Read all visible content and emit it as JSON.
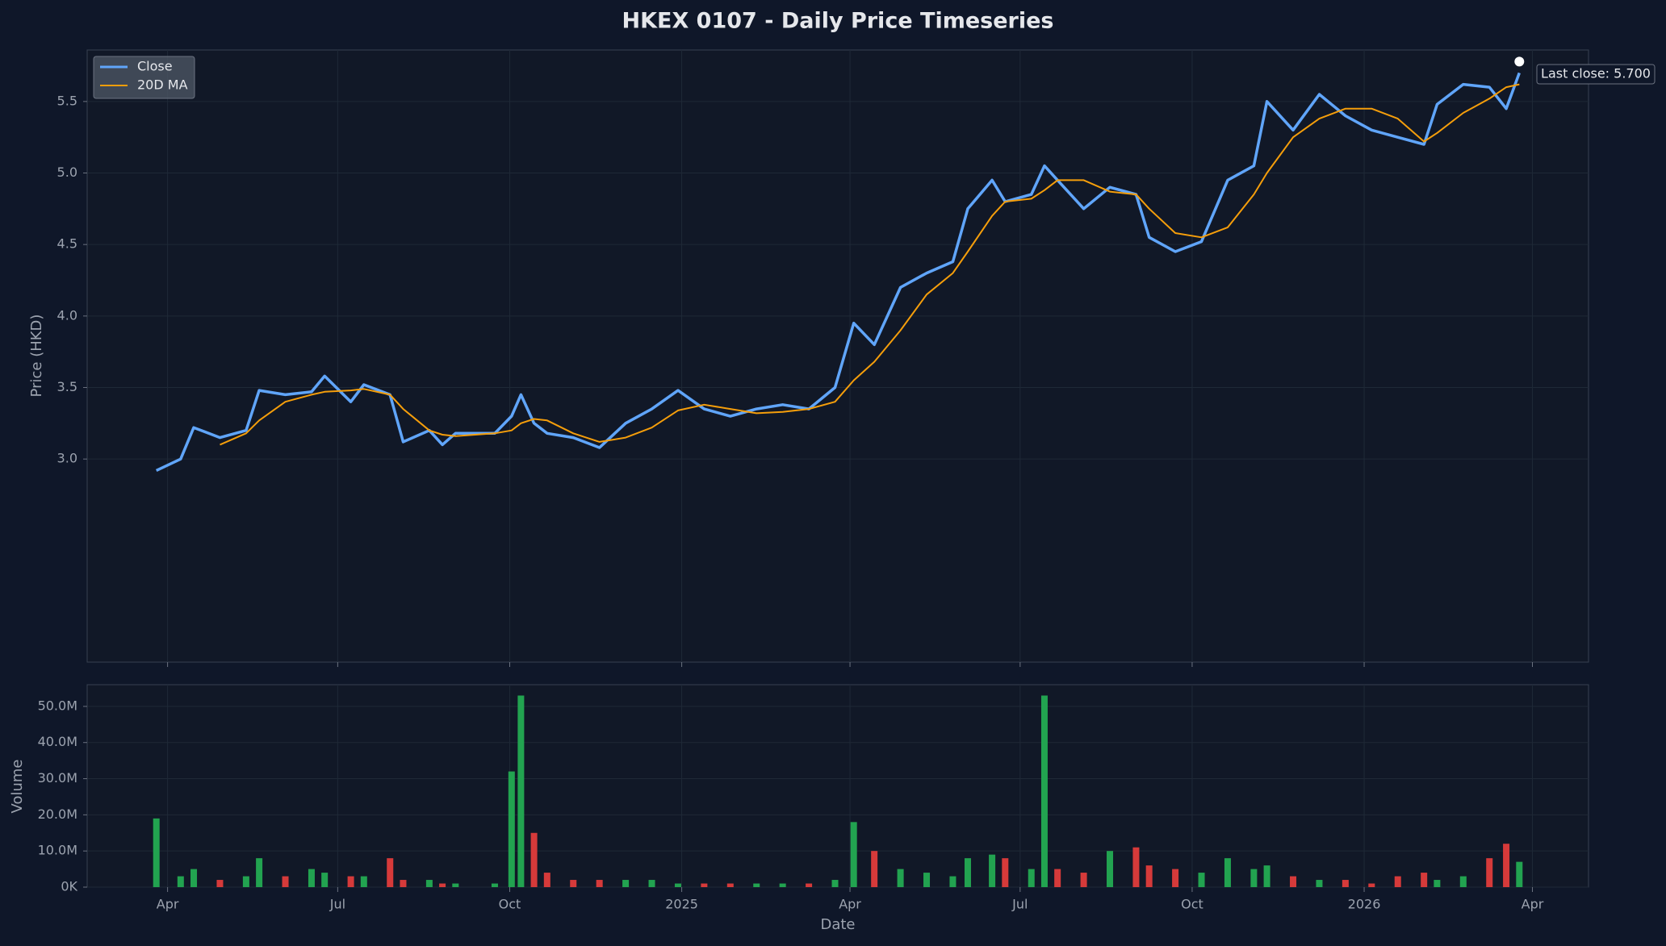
{
  "chart_data": [
    {
      "type": "line",
      "title": "HKEX 0107 - Daily Price Timeseries",
      "ylabel": "Price (HKD)",
      "annotation": "Last close: 5.700",
      "x": [
        "2024-03-26",
        "2024-04-08",
        "2024-04-15",
        "2024-04-29",
        "2024-05-13",
        "2024-05-20",
        "2024-06-03",
        "2024-06-17",
        "2024-06-24",
        "2024-07-08",
        "2024-07-15",
        "2024-07-29",
        "2024-08-05",
        "2024-08-19",
        "2024-08-26",
        "2024-09-02",
        "2024-09-23",
        "2024-10-02",
        "2024-10-07",
        "2024-10-14",
        "2024-10-21",
        "2024-11-04",
        "2024-11-18",
        "2024-12-02",
        "2024-12-16",
        "2024-12-30",
        "2025-01-13",
        "2025-01-27",
        "2025-02-10",
        "2025-02-24",
        "2025-03-10",
        "2025-03-24",
        "2025-04-03",
        "2025-04-14",
        "2025-04-28",
        "2025-05-12",
        "2025-05-26",
        "2025-06-03",
        "2025-06-16",
        "2025-06-23",
        "2025-07-07",
        "2025-07-14",
        "2025-07-21",
        "2025-08-04",
        "2025-08-18",
        "2025-09-01",
        "2025-09-08",
        "2025-09-22",
        "2025-10-06",
        "2025-10-20",
        "2025-11-03",
        "2025-11-10",
        "2025-11-24",
        "2025-12-08",
        "2025-12-22",
        "2026-01-05",
        "2026-01-19",
        "2026-02-02",
        "2026-02-09",
        "2026-02-23",
        "2026-03-09",
        "2026-03-18",
        "2026-03-25"
      ],
      "series": [
        {
          "name": "Close",
          "color": "#60a5fa",
          "values": [
            2.92,
            3.0,
            3.22,
            3.15,
            3.2,
            3.48,
            3.45,
            3.47,
            3.58,
            3.4,
            3.52,
            3.45,
            3.12,
            3.2,
            3.1,
            3.18,
            3.18,
            3.3,
            3.45,
            3.25,
            3.18,
            3.15,
            3.08,
            3.25,
            3.35,
            3.48,
            3.35,
            3.3,
            3.35,
            3.38,
            3.35,
            3.5,
            3.95,
            3.8,
            4.2,
            4.3,
            4.38,
            4.75,
            4.95,
            4.8,
            4.85,
            5.05,
            4.95,
            4.75,
            4.9,
            4.85,
            4.55,
            4.45,
            4.52,
            4.95,
            5.05,
            5.5,
            5.3,
            5.55,
            5.4,
            5.3,
            5.25,
            5.2,
            5.48,
            5.62,
            5.6,
            5.45,
            5.7
          ]
        },
        {
          "name": "20D MA",
          "color": "#f59e0b",
          "values": [
            null,
            null,
            null,
            3.1,
            3.18,
            3.27,
            3.4,
            3.45,
            3.47,
            3.48,
            3.49,
            3.45,
            3.35,
            3.2,
            3.17,
            3.16,
            3.18,
            3.2,
            3.25,
            3.28,
            3.27,
            3.18,
            3.12,
            3.15,
            3.22,
            3.34,
            3.38,
            3.35,
            3.32,
            3.33,
            3.35,
            3.4,
            3.55,
            3.68,
            3.9,
            4.15,
            4.3,
            4.45,
            4.7,
            4.8,
            4.82,
            4.88,
            4.95,
            4.95,
            4.87,
            4.85,
            4.75,
            4.58,
            4.55,
            4.62,
            4.85,
            5.0,
            5.25,
            5.38,
            5.45,
            5.45,
            5.38,
            5.22,
            5.28,
            5.42,
            5.52,
            5.6,
            5.62
          ]
        }
      ],
      "xlim": [
        "2024-02-18",
        "2026-05-01"
      ],
      "ylim": [
        1.58,
        5.86
      ],
      "yticks": [
        {
          "value": 3,
          "label": "3.0"
        },
        {
          "value": 3.5,
          "label": "3.5"
        },
        {
          "value": 4,
          "label": "4.0"
        },
        {
          "value": 4.5,
          "label": "4.5"
        },
        {
          "value": 5,
          "label": "5.0"
        },
        {
          "value": 5.5,
          "label": "5.5"
        }
      ],
      "grid": true,
      "legend": "upper left"
    },
    {
      "type": "bar",
      "ylabel": "Volume",
      "xlabel": "Date",
      "up_color": "#22a350",
      "down_color": "#d63a3a",
      "values": [
        19000000,
        3000000,
        5000000,
        2000000,
        3000000,
        8000000,
        3000000,
        5000000,
        4000000,
        3000000,
        3000000,
        8000000,
        2000000,
        2000000,
        1000000,
        1000000,
        1000000,
        32000000,
        53000000,
        15000000,
        4000000,
        2000000,
        2000000,
        2000000,
        2000000,
        1000000,
        1000000,
        1000000,
        1000000,
        1000000,
        1000000,
        2000000,
        18000000,
        10000000,
        5000000,
        4000000,
        3000000,
        8000000,
        9000000,
        8000000,
        5000000,
        53000000,
        5000000,
        4000000,
        10000000,
        11000000,
        6000000,
        5000000,
        4000000,
        8000000,
        5000000,
        6000000,
        3000000,
        2000000,
        2000000,
        1000000,
        3000000,
        4000000,
        2000000,
        3000000,
        8000000,
        12000000,
        7000000
      ],
      "xlim": [
        "2024-02-18",
        "2026-05-01"
      ],
      "xticks": [
        {
          "value": "2024-04-01",
          "label": "Apr"
        },
        {
          "value": "2024-07-01",
          "label": "Jul"
        },
        {
          "value": "2024-10-01",
          "label": "Oct"
        },
        {
          "value": "2025-01-01",
          "label": "2025"
        },
        {
          "value": "2025-04-01",
          "label": "Apr"
        },
        {
          "value": "2025-07-01",
          "label": "Jul"
        },
        {
          "value": "2025-10-01",
          "label": "Oct"
        },
        {
          "value": "2026-01-01",
          "label": "2026"
        },
        {
          "value": "2026-04-01",
          "label": "Apr"
        }
      ],
      "ylim": [
        0,
        56000000
      ],
      "yticks": [
        {
          "value": 0,
          "label": "0K"
        },
        {
          "value": 10000000,
          "label": "10.0M"
        },
        {
          "value": 20000000,
          "label": "20.0M"
        },
        {
          "value": 30000000,
          "label": "30.0M"
        },
        {
          "value": 40000000,
          "label": "40.0M"
        },
        {
          "value": 50000000,
          "label": "50.0M"
        }
      ],
      "grid": true
    }
  ]
}
